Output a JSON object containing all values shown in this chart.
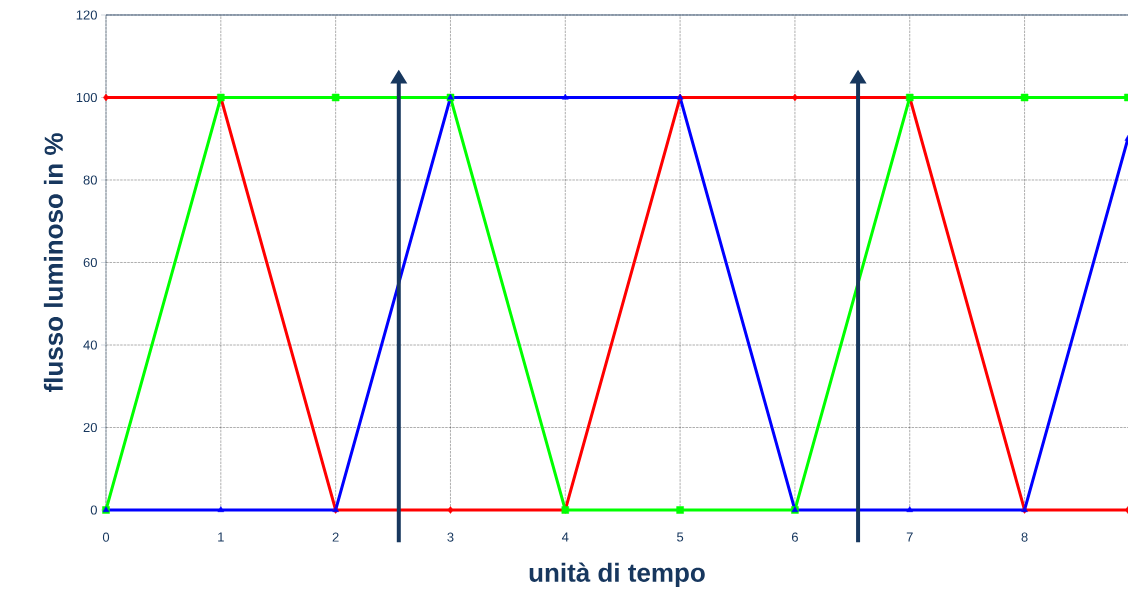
{
  "chart_data": {
    "type": "line",
    "xlabel": "unità di tempo",
    "ylabel": "flusso luminoso in %",
    "xlim": [
      0,
      8.9
    ],
    "ylim": [
      0,
      120
    ],
    "xticks": [
      0,
      1,
      2,
      3,
      4,
      5,
      6,
      7,
      8
    ],
    "yticks": [
      0,
      20,
      40,
      60,
      80,
      100,
      120
    ],
    "grid": true,
    "x": [
      0,
      1,
      2,
      3,
      4,
      5,
      6,
      7,
      8,
      8.9
    ],
    "series": [
      {
        "color": "#ff0000",
        "marker": "diamond",
        "values": [
          100,
          100,
          0,
          0,
          0,
          100,
          100,
          100,
          0,
          0
        ]
      },
      {
        "color": "#00ff00",
        "marker": "square",
        "values": [
          0,
          100,
          100,
          100,
          0,
          0,
          0,
          100,
          100,
          100
        ]
      },
      {
        "color": "#0000ff",
        "marker": "triangle",
        "values": [
          0,
          0,
          0,
          100,
          100,
          100,
          0,
          0,
          0,
          90
        ]
      }
    ],
    "ref_lines": [
      {
        "axis": "x",
        "value": 2.55,
        "color": "#17375e"
      },
      {
        "axis": "x",
        "value": 6.55,
        "color": "#17375e"
      }
    ]
  }
}
